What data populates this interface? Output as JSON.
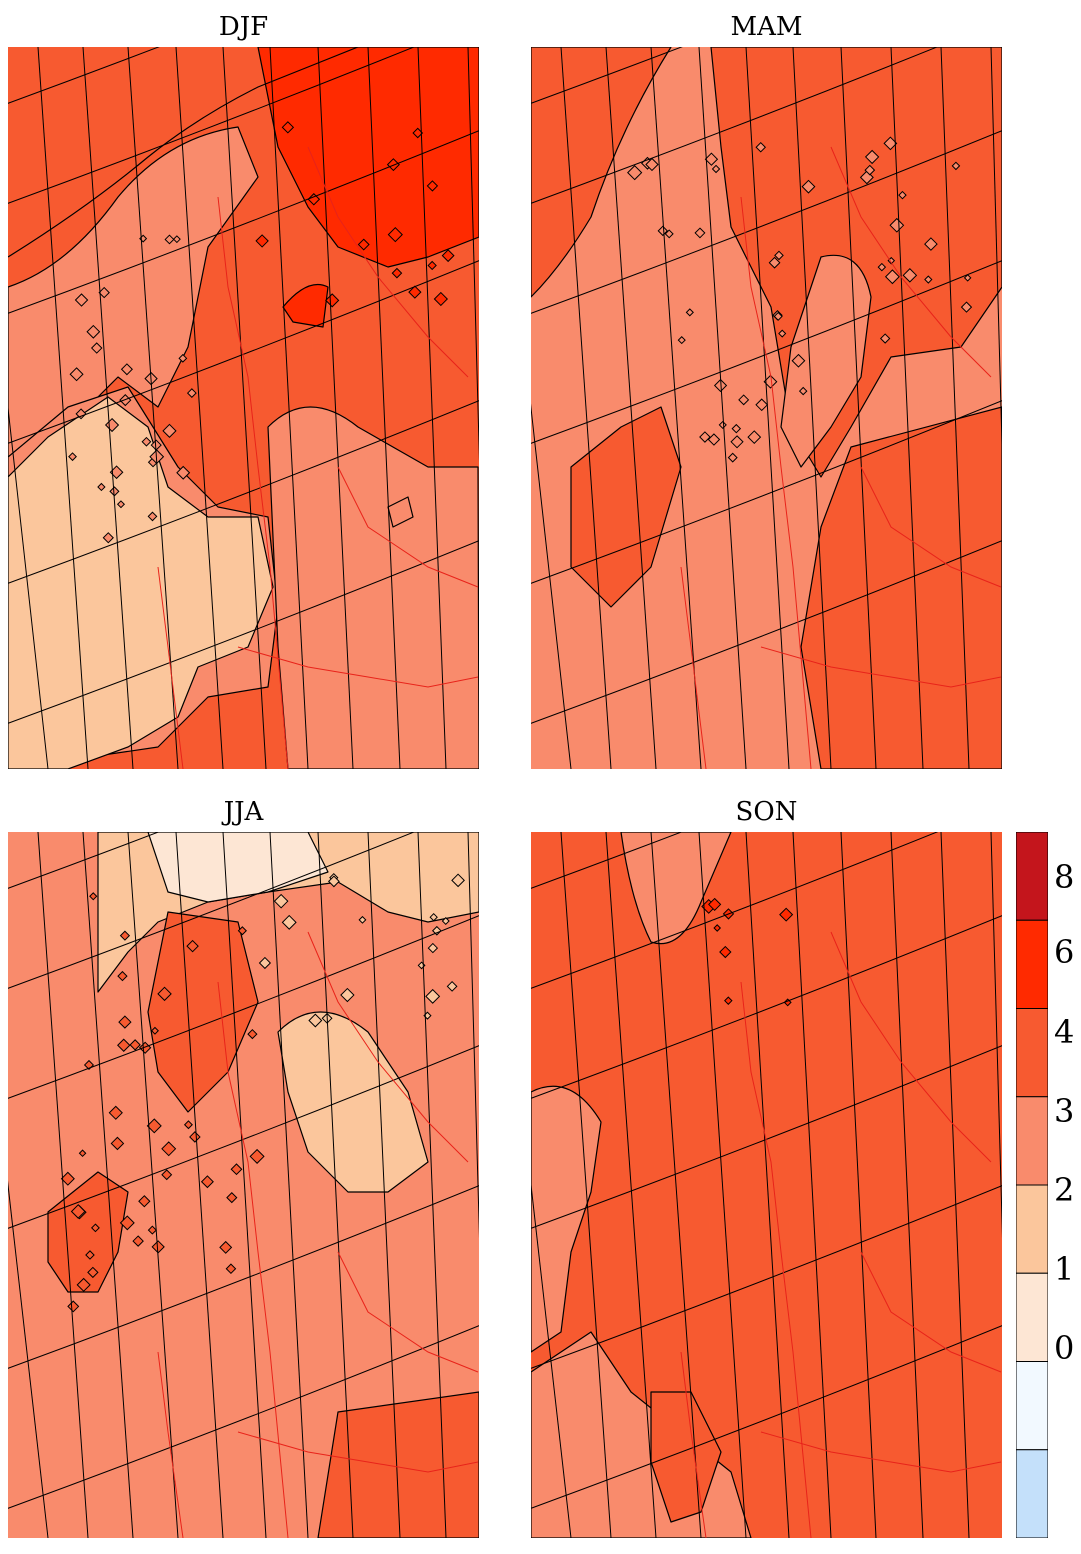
{
  "panels": [
    {
      "title": "DJF"
    },
    {
      "title": "MAM"
    },
    {
      "title": "JJA"
    },
    {
      "title": "SON"
    }
  ],
  "legend": {
    "labels": [
      "8",
      "6",
      "4",
      "3",
      "2",
      "1",
      "0"
    ],
    "colors": [
      "#c4151c",
      "#ff2a00",
      "#f75a30",
      "#f98b6c",
      "#fbc69c",
      "#fde6d4",
      "#f2f9ff",
      "#c4e0fa"
    ]
  },
  "palette": {
    "lvl0": "#c4e0fa",
    "lvl1": "#fde6d4",
    "lvl2": "#fbc69c",
    "lvl3": "#f98b6c",
    "lvl4": "#f75a30",
    "lvl6": "#ff2a00",
    "lvl8": "#c4151c",
    "border_line": "#e8231a",
    "coast_line": "#000000",
    "grid_line": "#000000"
  }
}
